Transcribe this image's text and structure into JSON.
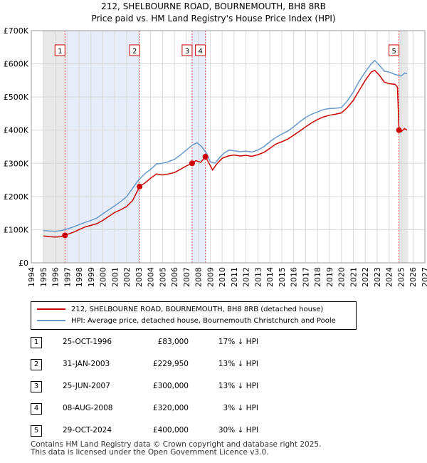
{
  "header": {
    "title": "212, SHELBOURNE ROAD, BOURNEMOUTH, BH8 8RB",
    "subtitle": "Price paid vs. HM Land Registry's House Price Index (HPI)"
  },
  "chart_data": {
    "type": "line",
    "title": "212, SHELBOURNE ROAD, BOURNEMOUTH, BH8 8RB",
    "subtitle": "Price paid vs. HM Land Registry's House Price Index (HPI)",
    "xlabel": "",
    "ylabel": "",
    "xlim": [
      1994,
      2027
    ],
    "ylim": [
      0,
      700000
    ],
    "x_ticks": [
      "1994",
      "1995",
      "1996",
      "1997",
      "1998",
      "1999",
      "2000",
      "2001",
      "2002",
      "2003",
      "2004",
      "2005",
      "2006",
      "2007",
      "2008",
      "2009",
      "2010",
      "2011",
      "2012",
      "2013",
      "2014",
      "2015",
      "2016",
      "2017",
      "2018",
      "2019",
      "2020",
      "2021",
      "2022",
      "2023",
      "2024",
      "2025",
      "2026",
      "2027"
    ],
    "y_ticks": [
      {
        "value": 0,
        "label": "£0"
      },
      {
        "value": 100000,
        "label": "£100K"
      },
      {
        "value": 200000,
        "label": "£200K"
      },
      {
        "value": 300000,
        "label": "£300K"
      },
      {
        "value": 400000,
        "label": "£400K"
      },
      {
        "value": 500000,
        "label": "£500K"
      },
      {
        "value": 600000,
        "label": "£600K"
      },
      {
        "value": 700000,
        "label": "£700K"
      }
    ],
    "grid": true,
    "shaded_ranges": [
      [
        1995.0,
        1996.8
      ],
      [
        2024.8,
        2025.6
      ]
    ],
    "highlight_bands": [
      [
        1996.82,
        2003.08
      ],
      [
        2007.48,
        2008.6
      ]
    ],
    "series": [
      {
        "name": "212, SHELBOURNE ROAD, BOURNEMOUTH, BH8 8RB (detached house)",
        "color": "#cc0000",
        "points": [
          [
            1995.0,
            81000
          ],
          [
            1995.5,
            79000
          ],
          [
            1996.0,
            78000
          ],
          [
            1996.5,
            79000
          ],
          [
            1996.82,
            83000
          ],
          [
            1997.5,
            92000
          ],
          [
            1998.0,
            100000
          ],
          [
            1998.5,
            108000
          ],
          [
            1999.0,
            113000
          ],
          [
            1999.5,
            118000
          ],
          [
            2000.0,
            128000
          ],
          [
            2000.5,
            140000
          ],
          [
            2001.0,
            152000
          ],
          [
            2001.5,
            160000
          ],
          [
            2002.0,
            170000
          ],
          [
            2002.5,
            188000
          ],
          [
            2003.08,
            229950
          ],
          [
            2003.5,
            240000
          ],
          [
            2004.0,
            255000
          ],
          [
            2004.5,
            268000
          ],
          [
            2005.0,
            265000
          ],
          [
            2005.5,
            268000
          ],
          [
            2006.0,
            272000
          ],
          [
            2006.5,
            282000
          ],
          [
            2007.0,
            292000
          ],
          [
            2007.48,
            300000
          ],
          [
            2007.8,
            308000
          ],
          [
            2008.2,
            303000
          ],
          [
            2008.6,
            320000
          ],
          [
            2008.9,
            300000
          ],
          [
            2009.2,
            280000
          ],
          [
            2009.6,
            300000
          ],
          [
            2010.0,
            315000
          ],
          [
            2010.5,
            322000
          ],
          [
            2011.0,
            325000
          ],
          [
            2011.5,
            322000
          ],
          [
            2012.0,
            324000
          ],
          [
            2012.5,
            321000
          ],
          [
            2013.0,
            326000
          ],
          [
            2013.5,
            333000
          ],
          [
            2014.0,
            345000
          ],
          [
            2014.5,
            358000
          ],
          [
            2015.0,
            365000
          ],
          [
            2015.5,
            373000
          ],
          [
            2016.0,
            385000
          ],
          [
            2016.5,
            397000
          ],
          [
            2017.0,
            410000
          ],
          [
            2017.5,
            422000
          ],
          [
            2018.0,
            432000
          ],
          [
            2018.5,
            440000
          ],
          [
            2019.0,
            445000
          ],
          [
            2019.5,
            448000
          ],
          [
            2020.0,
            452000
          ],
          [
            2020.5,
            468000
          ],
          [
            2021.0,
            490000
          ],
          [
            2021.5,
            520000
          ],
          [
            2022.0,
            550000
          ],
          [
            2022.5,
            575000
          ],
          [
            2022.8,
            580000
          ],
          [
            2023.2,
            565000
          ],
          [
            2023.6,
            545000
          ],
          [
            2024.0,
            540000
          ],
          [
            2024.5,
            538000
          ],
          [
            2024.7,
            530000
          ],
          [
            2024.83,
            400000
          ],
          [
            2025.0,
            395000
          ],
          [
            2025.3,
            405000
          ],
          [
            2025.5,
            400000
          ]
        ]
      },
      {
        "name": "HPI: Average price, detached house, Bournemouth Christchurch and Poole",
        "color": "#6699cc",
        "points": [
          [
            1995.0,
            97000
          ],
          [
            1995.5,
            96000
          ],
          [
            1996.0,
            95000
          ],
          [
            1996.5,
            97000
          ],
          [
            1997.0,
            102000
          ],
          [
            1997.5,
            108000
          ],
          [
            1998.0,
            115000
          ],
          [
            1998.5,
            122000
          ],
          [
            1999.0,
            128000
          ],
          [
            1999.5,
            135000
          ],
          [
            2000.0,
            148000
          ],
          [
            2000.5,
            160000
          ],
          [
            2001.0,
            172000
          ],
          [
            2001.5,
            185000
          ],
          [
            2002.0,
            200000
          ],
          [
            2002.5,
            225000
          ],
          [
            2003.0,
            250000
          ],
          [
            2003.5,
            268000
          ],
          [
            2004.0,
            282000
          ],
          [
            2004.5,
            298000
          ],
          [
            2005.0,
            300000
          ],
          [
            2005.5,
            305000
          ],
          [
            2006.0,
            312000
          ],
          [
            2006.5,
            325000
          ],
          [
            2007.0,
            340000
          ],
          [
            2007.5,
            355000
          ],
          [
            2007.9,
            362000
          ],
          [
            2008.3,
            350000
          ],
          [
            2008.7,
            330000
          ],
          [
            2009.0,
            305000
          ],
          [
            2009.4,
            300000
          ],
          [
            2009.8,
            318000
          ],
          [
            2010.2,
            332000
          ],
          [
            2010.6,
            340000
          ],
          [
            2011.0,
            338000
          ],
          [
            2011.5,
            335000
          ],
          [
            2012.0,
            337000
          ],
          [
            2012.5,
            334000
          ],
          [
            2013.0,
            340000
          ],
          [
            2013.5,
            350000
          ],
          [
            2014.0,
            365000
          ],
          [
            2014.5,
            378000
          ],
          [
            2015.0,
            388000
          ],
          [
            2015.5,
            397000
          ],
          [
            2016.0,
            410000
          ],
          [
            2016.5,
            425000
          ],
          [
            2017.0,
            438000
          ],
          [
            2017.5,
            448000
          ],
          [
            2018.0,
            455000
          ],
          [
            2018.5,
            462000
          ],
          [
            2019.0,
            465000
          ],
          [
            2019.5,
            466000
          ],
          [
            2020.0,
            468000
          ],
          [
            2020.5,
            488000
          ],
          [
            2021.0,
            515000
          ],
          [
            2021.5,
            548000
          ],
          [
            2022.0,
            575000
          ],
          [
            2022.5,
            600000
          ],
          [
            2022.8,
            610000
          ],
          [
            2023.2,
            595000
          ],
          [
            2023.6,
            578000
          ],
          [
            2024.0,
            575000
          ],
          [
            2024.5,
            568000
          ],
          [
            2025.0,
            563000
          ],
          [
            2025.3,
            572000
          ],
          [
            2025.5,
            570000
          ]
        ]
      }
    ],
    "sales": [
      {
        "id": "1",
        "year": 1996.82,
        "price": 83000
      },
      {
        "id": "2",
        "year": 2003.08,
        "price": 229950
      },
      {
        "id": "3",
        "year": 2007.48,
        "price": 300000
      },
      {
        "id": "4",
        "year": 2008.6,
        "price": 320000
      },
      {
        "id": "5",
        "year": 2024.83,
        "price": 400000
      }
    ]
  },
  "legend": {
    "property_label": "212, SHELBOURNE ROAD, BOURNEMOUTH, BH8 8RB (detached house)",
    "hpi_label": "HPI: Average price, detached house, Bournemouth Christchurch and Poole",
    "property_color": "#cc0000",
    "hpi_color": "#6699cc"
  },
  "sales_table": [
    {
      "num": "1",
      "date": "25-OCT-1996",
      "price": "£83,000",
      "hpi": "17% ↓ HPI"
    },
    {
      "num": "2",
      "date": "31-JAN-2003",
      "price": "£229,950",
      "hpi": "13% ↓ HPI"
    },
    {
      "num": "3",
      "date": "25-JUN-2007",
      "price": "£300,000",
      "hpi": "13% ↓ HPI"
    },
    {
      "num": "4",
      "date": "08-AUG-2008",
      "price": "£320,000",
      "hpi": "3% ↓ HPI"
    },
    {
      "num": "5",
      "date": "29-OCT-2024",
      "price": "£400,000",
      "hpi": "30% ↓ HPI"
    }
  ],
  "footer": {
    "line1": "Contains HM Land Registry data © Crown copyright and database right 2025.",
    "line2": "This data is licensed under the Open Government Licence v3.0."
  }
}
